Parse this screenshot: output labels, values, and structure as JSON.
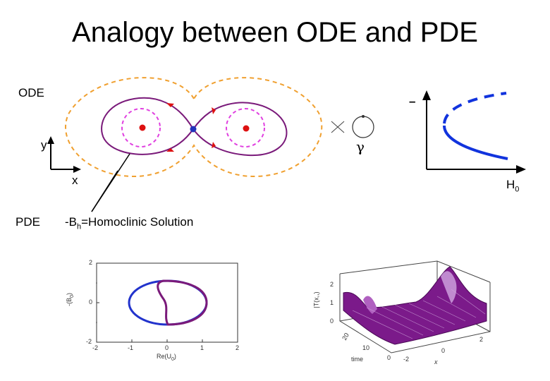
{
  "title": "Analogy between ODE and PDE",
  "labels": {
    "ode": "ODE",
    "pde": "PDE",
    "y": "y",
    "x": "x",
    "gamma": "γ",
    "lambda_dash": "–",
    "h0_main": "H",
    "h0_sub": "0",
    "homoclinic_prefix": "-B",
    "homoclinic_sub": "h",
    "homoclinic_suffix": "=Homoclinic Solution"
  },
  "plot_left": {
    "y_ticks": [
      "2",
      "0",
      "-2"
    ],
    "x_ticks": [
      "-2",
      "-1",
      "0",
      "1",
      "2"
    ],
    "ylabel": "-(B",
    "ylabel_sub": "0",
    "ylabel_end": ")",
    "xlabel": "Re(U",
    "xlabel_sub": "0",
    "xlabel_end": ")"
  },
  "plot_right": {
    "z_ticks": [
      "2",
      "1",
      "0"
    ],
    "zlabel": "|T(x,,)",
    "depth_ticks": [
      "20",
      "10",
      "0"
    ],
    "depth_label": "time",
    "x_ticks": [
      "2",
      "0",
      "-2"
    ],
    "x_label": "x"
  },
  "colors": {
    "orbit_purple": "#7a1a7a",
    "dashed_magenta": "#e040e0",
    "dashed_orange": "#f0a030",
    "node_red": "#dd1111",
    "node_blue": "#2233bb",
    "bifurcation_blue": "#1133dd",
    "surface_purple": "#7b1a8a"
  }
}
